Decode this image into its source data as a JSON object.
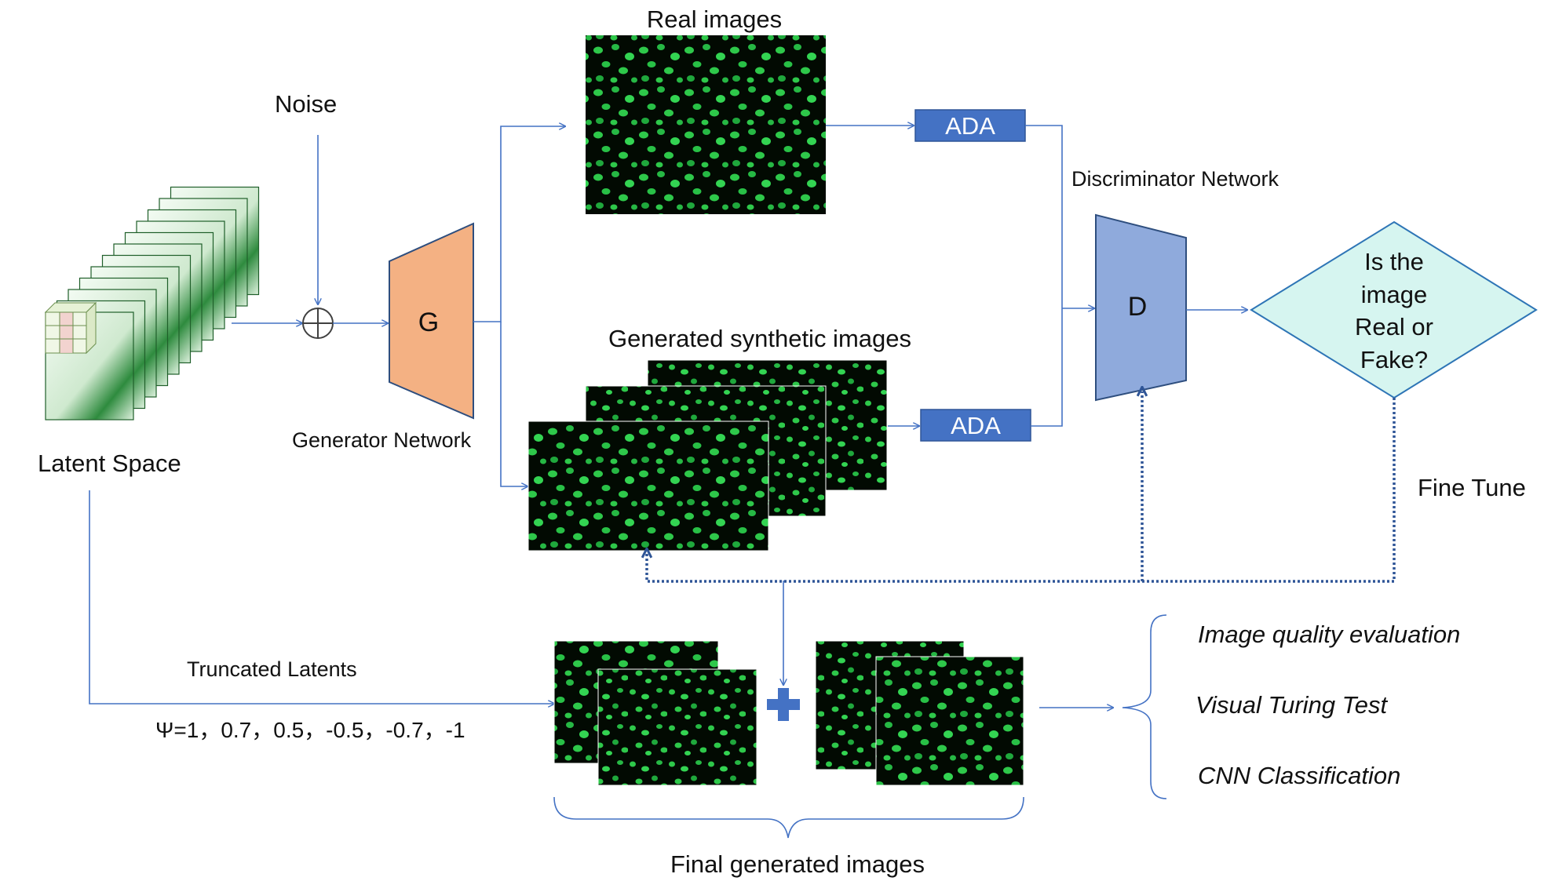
{
  "labels": {
    "noise": "Noise",
    "latent_space": "Latent Space",
    "generator_network": "Generator Network",
    "generator_symbol": "G",
    "real_images": "Real images",
    "generated_images": "Generated synthetic images",
    "ada_top": "ADA",
    "ada_bottom": "ADA",
    "discriminator_network": "Discriminator Network",
    "discriminator_symbol": "D",
    "question_lines": [
      "Is the",
      "image",
      "Real or",
      "Fake?"
    ],
    "fine_tune": "Fine Tune",
    "truncated_latents": "Truncated Latents",
    "psi_values": "Ψ=1，0.7，0.5，-0.5，-0.7，-1",
    "final_generated": "Final generated images",
    "evaluations": [
      "Image quality evaluation",
      "Visual Turing Test",
      "CNN Classification"
    ]
  },
  "colors": {
    "line": "#4472c4",
    "generator_fill": "#f4b183",
    "discriminator_fill": "#8faadc",
    "ada_fill": "#4472c4",
    "decision_fill": "#d6f5f0",
    "decision_stroke": "#2e75b6",
    "microscopy_bg": "#020a02",
    "cell": "#2ec84a",
    "latent_fill": "#e8f5e8",
    "latent_border": "#1f5f2a",
    "plus_fill": "#4472c4"
  },
  "icons": {
    "sum": "circle-plus-icon",
    "plus": "plus-icon"
  }
}
